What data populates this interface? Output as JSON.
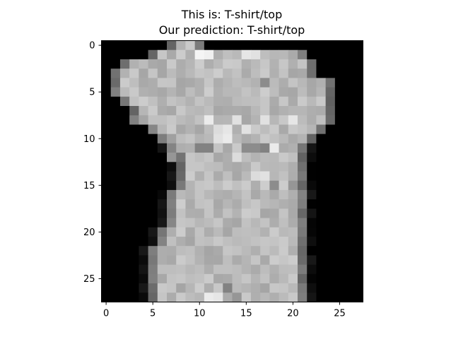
{
  "chart_data": {
    "type": "heatmap",
    "colormap": "gray",
    "title": "This is: T-shirt/top",
    "subtitle": "Our prediction: T-shirt/top",
    "xlabel": "",
    "ylabel": "",
    "xlim": [
      -0.5,
      27.5
    ],
    "ylim": [
      27.5,
      -0.5
    ],
    "x_ticks": [
      0,
      5,
      10,
      15,
      20,
      25
    ],
    "y_ticks": [
      0,
      5,
      10,
      15,
      20,
      25
    ],
    "x_tick_labels": [
      "0",
      "5",
      "10",
      "15",
      "20",
      "25"
    ],
    "y_tick_labels": [
      "0",
      "5",
      "10",
      "15",
      "20",
      "25"
    ],
    "grid": false,
    "image": {
      "rows": 28,
      "cols": 28,
      "value_range": [
        0,
        255
      ],
      "body_outline": [
        [
          7,
          10
        ],
        [
          5,
          21
        ],
        [
          2,
          22
        ],
        [
          1,
          22
        ],
        [
          1,
          24
        ],
        [
          1,
          24
        ],
        [
          2,
          24
        ],
        [
          3,
          24
        ],
        [
          3,
          24
        ],
        [
          5,
          23
        ],
        [
          6,
          22
        ],
        [
          7,
          21
        ],
        [
          8,
          21
        ],
        [
          8,
          21
        ],
        [
          8,
          21
        ],
        [
          8,
          21
        ],
        [
          7,
          21
        ],
        [
          7,
          21
        ],
        [
          7,
          21
        ],
        [
          7,
          21
        ],
        [
          6,
          21
        ],
        [
          6,
          21
        ],
        [
          5,
          21
        ],
        [
          5,
          21
        ],
        [
          5,
          21
        ],
        [
          5,
          21
        ],
        [
          5,
          21
        ],
        [
          5,
          21
        ]
      ],
      "highlight_cells": [
        [
          1,
          10,
          245
        ],
        [
          1,
          11,
          240
        ],
        [
          1,
          15,
          230
        ],
        [
          1,
          16,
          225
        ],
        [
          8,
          11,
          235
        ],
        [
          8,
          14,
          225
        ],
        [
          8,
          17,
          225
        ],
        [
          8,
          20,
          230
        ],
        [
          9,
          12,
          220
        ],
        [
          9,
          13,
          230
        ],
        [
          9,
          15,
          225
        ],
        [
          10,
          12,
          225
        ],
        [
          10,
          13,
          235
        ],
        [
          11,
          18,
          235
        ],
        [
          12,
          14,
          220
        ],
        [
          14,
          16,
          220
        ],
        [
          14,
          17,
          225
        ],
        [
          27,
          11,
          235
        ],
        [
          27,
          12,
          230
        ]
      ],
      "dark_cells": [
        [
          11,
          10,
          130
        ],
        [
          11,
          11,
          130
        ],
        [
          11,
          15,
          140
        ],
        [
          11,
          16,
          140
        ],
        [
          11,
          17,
          130
        ],
        [
          12,
          7,
          150
        ],
        [
          10,
          7,
          160
        ],
        [
          15,
          18,
          140
        ],
        [
          15,
          20,
          150
        ],
        [
          4,
          17,
          140
        ],
        [
          26,
          13,
          130
        ],
        [
          27,
          14,
          150
        ]
      ]
    }
  }
}
